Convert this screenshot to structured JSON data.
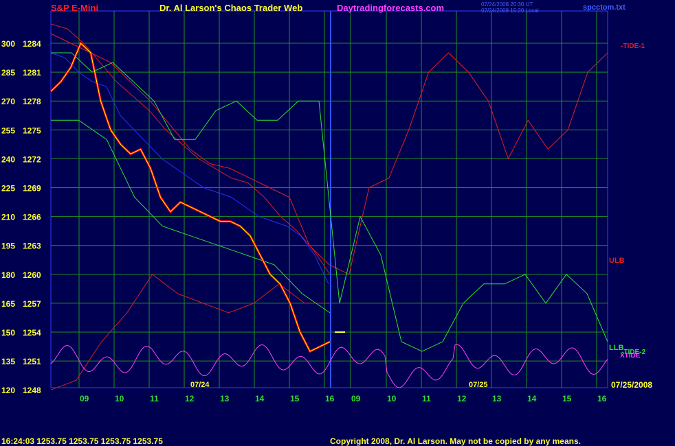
{
  "header": {
    "instrument": "S&P E-Mini",
    "title": "Dr. Al Larson's Chaos Trader Web",
    "site": "Daytradingforecasts.com",
    "timestamp_line1": "07/24/2008 20:30 UT",
    "timestamp_line2": "07/24/2008 15:20 Local",
    "filename": "spcctom.txt"
  },
  "footer": {
    "quote": "16:24:03  1253.75  1253.75  1253.75  1253.75",
    "copyright": "Copyright 2008, Dr. Al Larson. May not be copied by any means."
  },
  "labels": {
    "tide1": "-TIDE-1",
    "ulb": "ULB",
    "llb": "LLB",
    "tide2": "-TIDE-2",
    "xtide": "XTIDE",
    "date1": "07/24",
    "date2": "07/25",
    "date_right": "07/25/2008"
  },
  "colors": {
    "background": "#000050",
    "grid": "#209020",
    "price": "#ff0000",
    "tide1": "#e02020",
    "tide2": "#30e030",
    "band": "#d02020",
    "blue_avg": "#2030ff",
    "xtide": "#ff40ff",
    "smooth": "#ffff00"
  },
  "chart_data": {
    "type": "line",
    "title": "S&P E-Mini",
    "yticks_left": [
      "300",
      "285",
      "270",
      "255",
      "240",
      "225",
      "210",
      "195",
      "180",
      "165",
      "150",
      "135",
      "120"
    ],
    "yticks_price": [
      "1284",
      "1281",
      "1278",
      "1275",
      "1272",
      "1269",
      "1266",
      "1263",
      "1260",
      "1257",
      "1254",
      "1251",
      "1248"
    ],
    "ylim": [
      1248,
      1285.5
    ],
    "xticks": [
      "09",
      "10",
      "11",
      "12",
      "13",
      "14",
      "15",
      "16",
      "09",
      "10",
      "11",
      "12",
      "13",
      "14",
      "15",
      "16"
    ],
    "series": [
      {
        "name": "price",
        "values": [
          1279,
          1280,
          1281.5,
          1284,
          1283,
          1278,
          1275,
          1273.5,
          1272.5,
          1273,
          1271,
          1268,
          1266.5,
          1267.5,
          1267,
          1266.5,
          1266,
          1265.5,
          1265.5,
          1265,
          1264,
          1262,
          1260,
          1259,
          1257,
          1254,
          1252,
          1252.5,
          1253
        ]
      },
      {
        "name": "TIDE-1",
        "values": [
          1285,
          1284,
          1283,
          1282,
          1280,
          1278,
          1275.5,
          1273,
          1271.5,
          1271,
          1270,
          1269,
          1268,
          1263,
          1261,
          1260,
          1269,
          1270,
          1275,
          1281,
          1283,
          1281,
          1278,
          1272,
          1276,
          1273,
          1275,
          1281,
          1283
        ]
      },
      {
        "name": "TIDE-2",
        "values": [
          1283,
          1283,
          1281,
          1282,
          1280,
          1278,
          1274,
          1274,
          1277,
          1278,
          1276,
          1276,
          1278,
          1278,
          1257,
          1266,
          1262,
          1253,
          1252,
          1253,
          1257,
          1259,
          1259,
          1260,
          1257,
          1260,
          1258,
          1253
        ]
      },
      {
        "name": "ULB",
        "values": [
          1248,
          1249,
          1253,
          1256,
          1260,
          1258,
          1257,
          1256,
          1257,
          1259,
          1257,
          1257
        ]
      },
      {
        "name": "LLB",
        "values": [
          1276,
          1276,
          1274,
          1268,
          1265,
          1264,
          1263,
          1262,
          1261,
          1258,
          1256
        ]
      }
    ]
  }
}
